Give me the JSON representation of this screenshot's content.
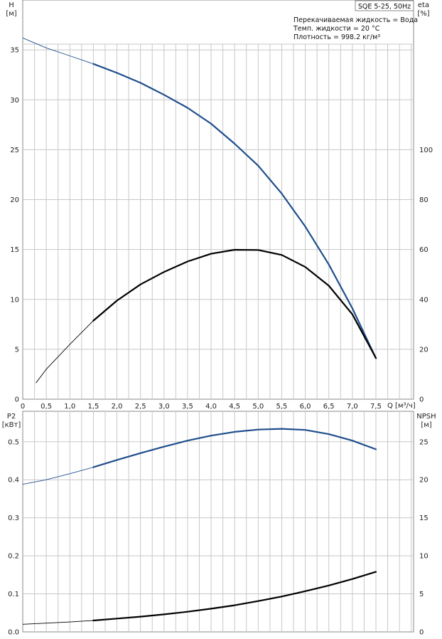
{
  "header": {
    "model": "SQE 5-25, 50Hz",
    "liquid": "Перекачиваемая жидкость = Вода",
    "temp": "Темп. жидкости = 20 °C",
    "density": "Плотность = 998.2 кг/м³"
  },
  "colors": {
    "blue": "#1f4e8c",
    "black": "#000000",
    "grid": "#c8c8c8"
  },
  "chart_data": [
    {
      "type": "line",
      "name": "top-panel",
      "xlabel": "Q [м³/ч]",
      "xlim": [
        0,
        8.3
      ],
      "xticks": [
        "0",
        "0,5",
        "1,0",
        "1,5",
        "2,0",
        "2,5",
        "3,0",
        "3,5",
        "4,0",
        "4,5",
        "5,0",
        "5,5",
        "6,0",
        "6,5",
        "7,0",
        "7,5"
      ],
      "left_axis": {
        "label_line1": "H",
        "label_line2": "[м]",
        "ylim": [
          0,
          40
        ],
        "ticks": [
          0,
          5,
          10,
          15,
          20,
          25,
          30,
          35
        ]
      },
      "right_axis": {
        "label_line1": "eta",
        "label_line2": "[%]",
        "ylim": [
          0,
          160
        ],
        "ticks": [
          0,
          20,
          40,
          60,
          80,
          100
        ]
      },
      "series": [
        {
          "axis": "left",
          "color": "#1f4e8c",
          "thin_until": 1.5,
          "x": [
            0,
            0.5,
            1.0,
            1.5,
            2.0,
            2.5,
            3.0,
            3.5,
            4.0,
            4.5,
            5.0,
            5.5,
            6.0,
            6.5,
            7.0,
            7.5
          ],
          "y": [
            36.2,
            35.2,
            34.4,
            33.6,
            32.7,
            31.7,
            30.5,
            29.2,
            27.6,
            25.6,
            23.4,
            20.6,
            17.3,
            13.5,
            9.1,
            4.1
          ]
        },
        {
          "axis": "right",
          "color": "#000000",
          "thin_until": 1.5,
          "x": [
            0.28,
            0.5,
            1.0,
            1.5,
            2.0,
            2.5,
            3.0,
            3.5,
            4.0,
            4.5,
            5.0,
            5.5,
            6.0,
            6.5,
            7.0,
            7.5
          ],
          "y": [
            6.5,
            12,
            22,
            31.5,
            39.5,
            46,
            51,
            55.2,
            58.3,
            59.9,
            59.8,
            57.8,
            53,
            45.5,
            34,
            16.5
          ]
        }
      ]
    },
    {
      "type": "line",
      "name": "bottom-panel",
      "xlim": [
        0,
        8.3
      ],
      "left_axis": {
        "label_line1": "P2",
        "label_line2": "[кВт]",
        "ylim": [
          0,
          0.58
        ],
        "ticks": [
          "0.0",
          "0.1",
          "0.2",
          "0.3",
          "0.4",
          "0.5"
        ]
      },
      "right_axis": {
        "label_line1": "NPSH",
        "label_line2": "[м]",
        "ylim": [
          0,
          29
        ],
        "ticks": [
          0,
          5,
          10,
          15,
          20,
          25
        ]
      },
      "series": [
        {
          "axis": "left",
          "color": "#1f4e8c",
          "thin_until": 1.5,
          "x": [
            0,
            0.5,
            1.0,
            1.5,
            2.0,
            2.5,
            3.0,
            3.5,
            4.0,
            4.5,
            5.0,
            5.5,
            6.0,
            6.5,
            7.0,
            7.5
          ],
          "y": [
            0.388,
            0.4,
            0.416,
            0.433,
            0.452,
            0.47,
            0.487,
            0.503,
            0.516,
            0.526,
            0.532,
            0.534,
            0.531,
            0.52,
            0.503,
            0.48
          ]
        },
        {
          "axis": "right",
          "color": "#000000",
          "thin_until": 1.5,
          "x": [
            0,
            0.5,
            1.0,
            1.5,
            2.0,
            2.5,
            3.0,
            3.5,
            4.0,
            4.5,
            5.0,
            5.5,
            6.0,
            6.5,
            7.0,
            7.5
          ],
          "y": [
            1.0,
            1.15,
            1.3,
            1.5,
            1.75,
            2.0,
            2.3,
            2.65,
            3.05,
            3.5,
            4.05,
            4.65,
            5.35,
            6.1,
            6.95,
            7.9
          ]
        }
      ]
    }
  ]
}
